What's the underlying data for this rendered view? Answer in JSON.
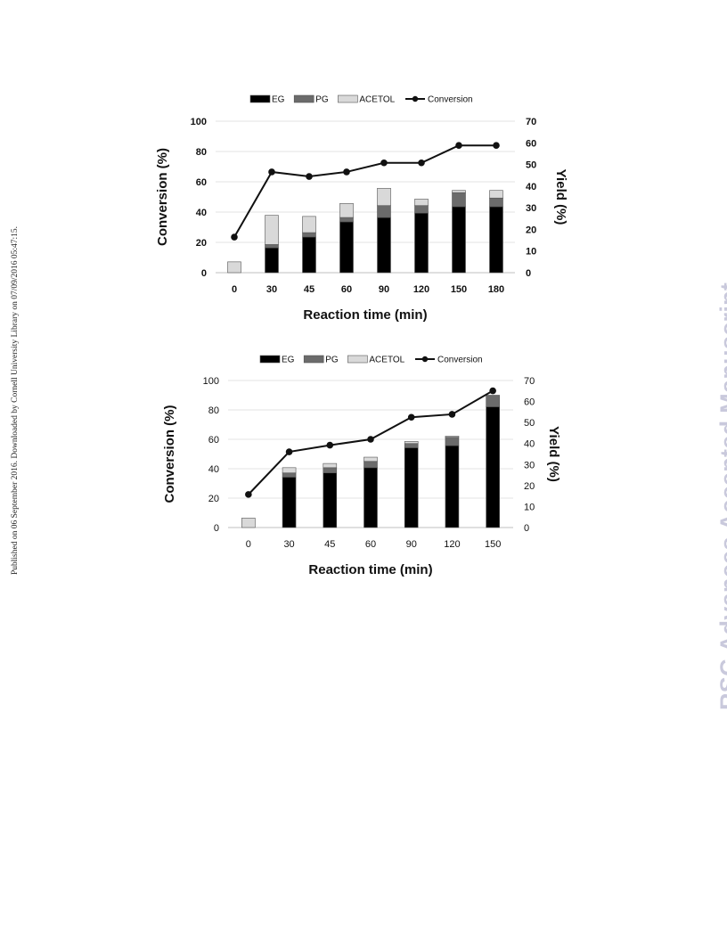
{
  "side_note": "Published on 06 September 2016. Downloaded by Cornell University Library on 07/09/2016 05:47:15.",
  "watermark": "RSC Advances Accepted Manuscript",
  "colors": {
    "EG": "#000000",
    "PG": "#6b6b6b",
    "ACETOL": "#d9d9d9",
    "Conversion": "#111111",
    "grid": "#e3e3e3"
  },
  "chart_data": [
    {
      "type": "bar",
      "stacked": true,
      "secondary_line": true,
      "categories": [
        "0",
        "30",
        "45",
        "60",
        "90",
        "120",
        "150",
        "180"
      ],
      "series": [
        {
          "name": "EG",
          "axis": "right",
          "values": [
            0,
            11.5,
            16.5,
            23.5,
            25.5,
            27.5,
            30.5,
            30.5
          ]
        },
        {
          "name": "PG",
          "axis": "right",
          "values": [
            0,
            1.5,
            2.0,
            2.0,
            5.5,
            3.5,
            6.5,
            4.0
          ]
        },
        {
          "name": "ACETOL",
          "axis": "right",
          "values": [
            5.0,
            13.5,
            7.5,
            6.5,
            8.0,
            3.0,
            1.0,
            3.5
          ]
        },
        {
          "name": "Conversion",
          "type": "line",
          "axis": "left",
          "values": [
            23.5,
            66.5,
            63.5,
            66.5,
            72.5,
            72.5,
            84.0,
            84.0
          ]
        }
      ],
      "xlabel": "Reaction time (min)",
      "ylabel": "Conversion (%)",
      "y2label": "Yield (%)",
      "ylim": [
        0,
        100
      ],
      "y2lim": [
        0,
        70
      ],
      "yticks": [
        "0",
        "20",
        "40",
        "60",
        "80",
        "100"
      ],
      "y2ticks": [
        "0",
        "10",
        "20",
        "30",
        "40",
        "50",
        "60",
        "70"
      ],
      "grid": true,
      "legend": "top"
    },
    {
      "type": "bar",
      "stacked": true,
      "secondary_line": true,
      "categories": [
        "0",
        "30",
        "45",
        "60",
        "90",
        "120",
        "150"
      ],
      "series": [
        {
          "name": "EG",
          "axis": "right",
          "values": [
            0,
            24.0,
            26.0,
            28.5,
            38.0,
            39.0,
            57.5
          ]
        },
        {
          "name": "PG",
          "axis": "right",
          "values": [
            0,
            2.0,
            2.5,
            3.0,
            2.0,
            4.0,
            5.5
          ]
        },
        {
          "name": "ACETOL",
          "axis": "right",
          "values": [
            4.5,
            2.5,
            2.0,
            2.0,
            1.0,
            0.5,
            0
          ]
        },
        {
          "name": "Conversion",
          "type": "line",
          "axis": "left",
          "values": [
            22.5,
            51.5,
            56.0,
            60.0,
            75.0,
            77.0,
            93.0
          ]
        }
      ],
      "xlabel": "Reaction time (min)",
      "ylabel": "Conversion (%)",
      "y2label": "Yield (%)",
      "ylim": [
        0,
        100
      ],
      "y2lim": [
        0,
        70
      ],
      "yticks": [
        "0",
        "20",
        "40",
        "60",
        "80",
        "100"
      ],
      "y2ticks": [
        "0",
        "10",
        "20",
        "30",
        "40",
        "50",
        "60",
        "70"
      ],
      "grid": true,
      "legend": "top"
    }
  ]
}
